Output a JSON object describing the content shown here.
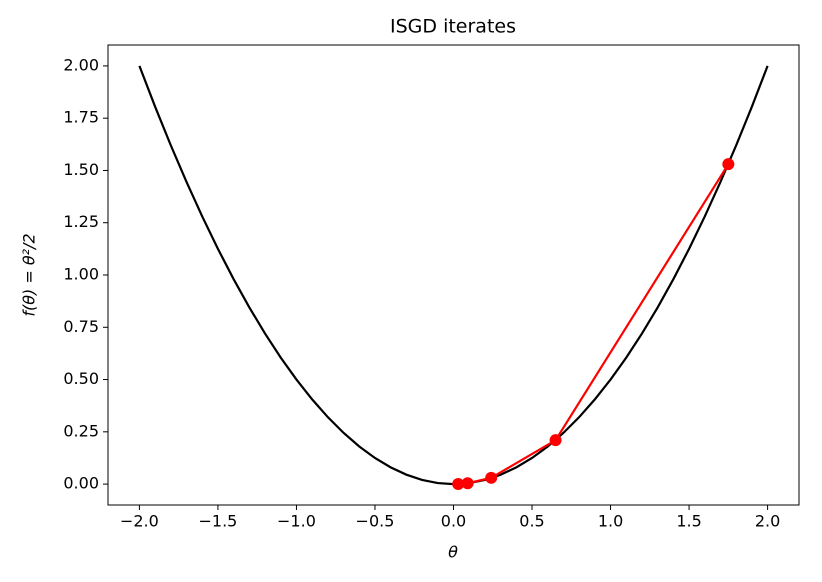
{
  "chart_data": {
    "type": "line",
    "title": "ISGD iterates",
    "xlabel": "θ",
    "ylabel": "f(θ) = θ²/2",
    "series": [
      {
        "color": "#000000",
        "marker": false,
        "x": [
          -2.0,
          -1.9,
          -1.8,
          -1.7,
          -1.6,
          -1.5,
          -1.4,
          -1.3,
          -1.2,
          -1.1,
          -1.0,
          -0.9,
          -0.8,
          -0.7,
          -0.6,
          -0.5,
          -0.4,
          -0.3,
          -0.2,
          -0.1,
          0.0,
          0.1,
          0.2,
          0.3,
          0.4,
          0.5,
          0.6,
          0.7,
          0.8,
          0.9,
          1.0,
          1.1,
          1.2,
          1.3,
          1.4,
          1.5,
          1.6,
          1.7,
          1.8,
          1.9,
          2.0
        ],
        "values": [
          2.0,
          1.805,
          1.62,
          1.445,
          1.28,
          1.125,
          0.98,
          0.845,
          0.72,
          0.605,
          0.5,
          0.405,
          0.32,
          0.245,
          0.18,
          0.125,
          0.08,
          0.045,
          0.02,
          0.005,
          0.0,
          0.005,
          0.02,
          0.045,
          0.08,
          0.125,
          0.18,
          0.245,
          0.32,
          0.405,
          0.5,
          0.605,
          0.72,
          0.845,
          0.98,
          1.125,
          1.28,
          1.445,
          1.62,
          1.805,
          2.0
        ]
      },
      {
        "color": "#ff0000",
        "marker": true,
        "x": [
          1.75,
          0.65,
          0.24,
          0.09,
          0.03
        ],
        "values": [
          1.53,
          0.21,
          0.03,
          0.004,
          0.0005
        ]
      }
    ],
    "xlim": [
      -2.2,
      2.2
    ],
    "ylim": [
      -0.1,
      2.1
    ],
    "xticks": [
      {
        "value": -2.0,
        "label": "−2.0"
      },
      {
        "value": -1.5,
        "label": "−1.5"
      },
      {
        "value": -1.0,
        "label": "−1.0"
      },
      {
        "value": -0.5,
        "label": "−0.5"
      },
      {
        "value": 0.0,
        "label": "0.0"
      },
      {
        "value": 0.5,
        "label": "0.5"
      },
      {
        "value": 1.0,
        "label": "1.0"
      },
      {
        "value": 1.5,
        "label": "1.5"
      },
      {
        "value": 2.0,
        "label": "2.0"
      }
    ],
    "yticks": [
      {
        "value": 0.0,
        "label": "0.00"
      },
      {
        "value": 0.25,
        "label": "0.25"
      },
      {
        "value": 0.5,
        "label": "0.50"
      },
      {
        "value": 0.75,
        "label": "0.75"
      },
      {
        "value": 1.0,
        "label": "1.00"
      },
      {
        "value": 1.25,
        "label": "1.25"
      },
      {
        "value": 1.5,
        "label": "1.50"
      },
      {
        "value": 1.75,
        "label": "1.75"
      },
      {
        "value": 2.0,
        "label": "2.00"
      }
    ]
  }
}
